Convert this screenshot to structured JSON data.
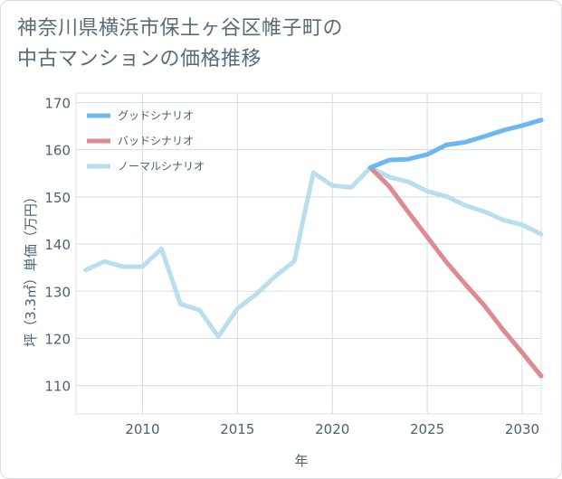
{
  "chart_data": {
    "type": "line",
    "title_lines": [
      "神奈川県横浜市保土ヶ谷区帷子町の",
      "中古マンションの価格推移"
    ],
    "xlabel": "年",
    "ylabel": "坪（3.3㎡）単価（万円）",
    "xlim": [
      2006.5,
      2031
    ],
    "ylim": [
      104,
      172
    ],
    "xticks": [
      2010,
      2015,
      2020,
      2025,
      2030
    ],
    "yticks": [
      110,
      120,
      130,
      140,
      150,
      160,
      170
    ],
    "grid": true,
    "legend_position": "top-left",
    "series": [
      {
        "name": "グッドシナリオ",
        "color": "#6cb7ef",
        "x": [
          2022,
          2023,
          2024,
          2025,
          2026,
          2027,
          2028,
          2029,
          2030,
          2031
        ],
        "y": [
          156.2,
          157.8,
          158,
          159,
          161,
          161.6,
          162.8,
          164.1,
          165.1,
          166.3
        ]
      },
      {
        "name": "バッドシナリオ",
        "color": "#de8a91",
        "x": [
          2022,
          2023,
          2024,
          2025,
          2026,
          2027,
          2028,
          2029,
          2030,
          2031
        ],
        "y": [
          156.2,
          152.2,
          146.8,
          141.5,
          136.2,
          131.5,
          127,
          121.8,
          117,
          112
        ]
      },
      {
        "name": "ノーマルシナリオ",
        "color": "#b9deed",
        "x": [
          2007,
          2008,
          2009,
          2010,
          2011,
          2012,
          2013,
          2014,
          2015,
          2016,
          2017,
          2018,
          2019,
          2020,
          2021,
          2022,
          2023,
          2024,
          2025,
          2026,
          2027,
          2028,
          2029,
          2030,
          2031
        ],
        "y": [
          134.5,
          136.3,
          135.2,
          135.2,
          139,
          127.3,
          126,
          120.4,
          126.3,
          129.4,
          133.2,
          136.4,
          155.1,
          152.4,
          152,
          156.2,
          154.2,
          153.2,
          151.2,
          150.1,
          148.2,
          146.9,
          145.1,
          144.1,
          142.1
        ]
      }
    ]
  }
}
